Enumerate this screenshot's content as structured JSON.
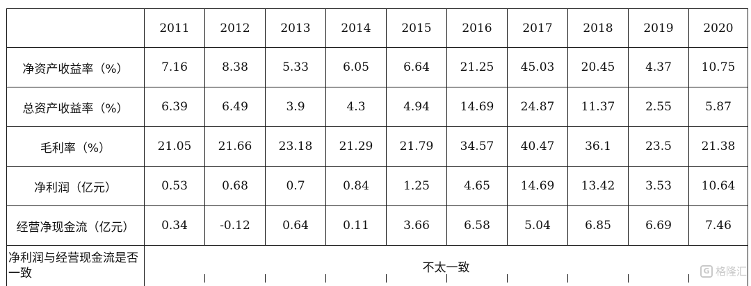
{
  "table": {
    "header": {
      "corner": "",
      "years": [
        "2011",
        "2012",
        "2013",
        "2014",
        "2015",
        "2016",
        "2017",
        "2018",
        "2019",
        "2020"
      ]
    },
    "rows": [
      {
        "label": "净资产收益率（%）",
        "values": [
          "7.16",
          "8.38",
          "5.33",
          "6.05",
          "6.64",
          "21.25",
          "45.03",
          "20.45",
          "4.37",
          "10.75"
        ]
      },
      {
        "label": "总资产收益率（%）",
        "values": [
          "6.39",
          "6.49",
          "3.9",
          "4.3",
          "4.94",
          "14.69",
          "24.87",
          "11.37",
          "2.55",
          "5.87"
        ]
      },
      {
        "label": "毛利率（%）",
        "values": [
          "21.05",
          "21.66",
          "23.18",
          "21.29",
          "21.79",
          "34.57",
          "40.47",
          "36.1",
          "23.5",
          "21.38"
        ]
      },
      {
        "label": "净利润（亿元）",
        "values": [
          "0.53",
          "0.68",
          "0.7",
          "0.84",
          "1.25",
          "4.65",
          "14.69",
          "13.42",
          "3.53",
          "10.64"
        ]
      },
      {
        "label": "经营净现金流（亿元）",
        "values": [
          "0.34",
          "-0.12",
          "0.64",
          "0.11",
          "3.66",
          "6.58",
          "5.04",
          "6.85",
          "6.69",
          "7.46"
        ]
      }
    ],
    "consistency": {
      "label": "净利润与经营现金流是否一致",
      "value": "不太一致"
    }
  },
  "watermark": {
    "logo_letter": "G",
    "text": "格隆汇"
  }
}
